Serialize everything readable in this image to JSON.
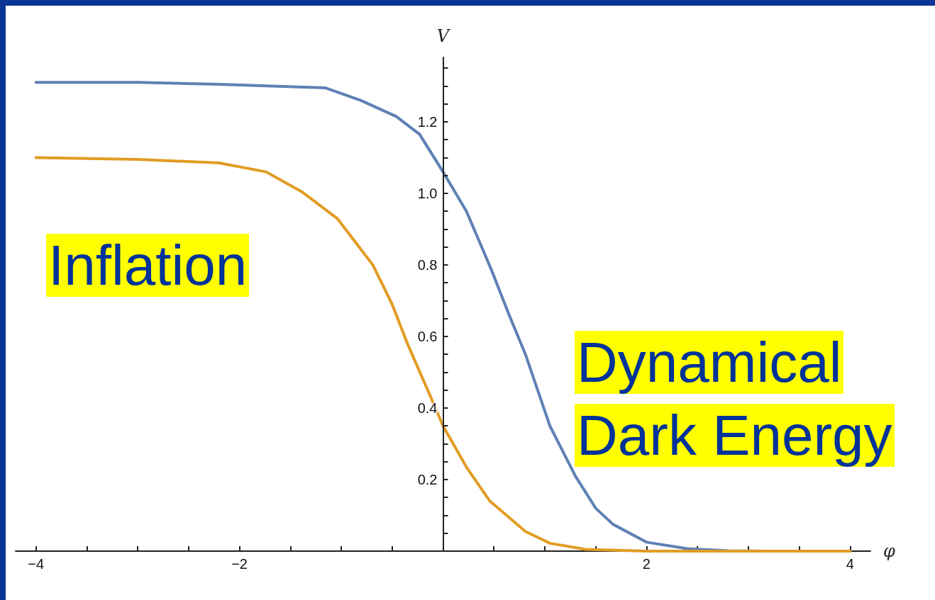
{
  "chart_data": {
    "type": "line",
    "xlabel": "φ",
    "ylabel": "V",
    "xlim": [
      -4.2,
      4.2
    ],
    "ylim": [
      0,
      1.38
    ],
    "xticks": [
      {
        "value": -4,
        "label": "−4"
      },
      {
        "value": -3.5,
        "label": null
      },
      {
        "value": -3,
        "label": null
      },
      {
        "value": -2.5,
        "label": null
      },
      {
        "value": -2,
        "label": "−2"
      },
      {
        "value": -1.5,
        "label": null
      },
      {
        "value": -1,
        "label": null
      },
      {
        "value": -0.5,
        "label": null
      },
      {
        "value": 0,
        "label": null
      },
      {
        "value": 0.5,
        "label": null
      },
      {
        "value": 1,
        "label": null
      },
      {
        "value": 1.5,
        "label": null
      },
      2,
      {
        "value": 2.5,
        "label": null
      },
      {
        "value": 3,
        "label": null
      },
      {
        "value": 3.5,
        "label": null
      },
      4
    ],
    "yticks": [
      {
        "value": 0,
        "label": null
      },
      {
        "value": 0.05,
        "label": null
      },
      {
        "value": 0.1,
        "label": null
      },
      {
        "value": 0.15,
        "label": null
      },
      0.2,
      {
        "value": 0.25,
        "label": null
      },
      {
        "value": 0.3,
        "label": null
      },
      {
        "value": 0.35,
        "label": null
      },
      0.4,
      {
        "value": 0.45,
        "label": null
      },
      {
        "value": 0.5,
        "label": null
      },
      {
        "value": 0.55,
        "label": null
      },
      0.6,
      {
        "value": 0.65,
        "label": null
      },
      {
        "value": 0.7,
        "label": null
      },
      {
        "value": 0.75,
        "label": null
      },
      0.8,
      {
        "value": 0.85,
        "label": null
      },
      {
        "value": 0.9,
        "label": null
      },
      {
        "value": 0.95,
        "label": null
      },
      {
        "value": 1,
        "label": "1.0"
      },
      {
        "value": 1.05,
        "label": null
      },
      {
        "value": 1.1,
        "label": null
      },
      {
        "value": 1.15,
        "label": null
      },
      1.2,
      {
        "value": 1.25,
        "label": null
      },
      {
        "value": 1.3,
        "label": null
      },
      {
        "value": 1.35,
        "label": null
      }
    ],
    "series": [
      {
        "color": "#5e81b5",
        "x": [
          -4,
          -3,
          -2.2,
          -1.16,
          -0.81,
          -0.46,
          -0.23,
          0,
          0.23,
          0.47,
          0.65,
          0.81,
          1.05,
          1.3,
          1.5,
          1.67,
          2,
          2.4,
          2.8,
          3.2,
          4
        ],
        "values": [
          1.31,
          1.31,
          1.305,
          1.295,
          1.26,
          1.215,
          1.165,
          1.06,
          0.95,
          0.79,
          0.66,
          0.55,
          0.35,
          0.21,
          0.12,
          0.075,
          0.025,
          0.007,
          0.001,
          0,
          0
        ]
      },
      {
        "color": "#e19c24",
        "x": [
          -4,
          -3,
          -2.2,
          -1.74,
          -1.39,
          -1.04,
          -0.69,
          -0.5,
          -0.35,
          -0.12,
          0,
          0.23,
          0.46,
          0.81,
          1.05,
          1.4,
          2,
          4
        ],
        "values": [
          1.1,
          1.095,
          1.085,
          1.06,
          1.005,
          0.93,
          0.8,
          0.69,
          0.58,
          0.43,
          0.35,
          0.235,
          0.14,
          0.055,
          0.022,
          0.005,
          0,
          0
        ]
      }
    ],
    "annotations": [
      "Inflation",
      "Dynamical Dark Energy"
    ]
  }
}
